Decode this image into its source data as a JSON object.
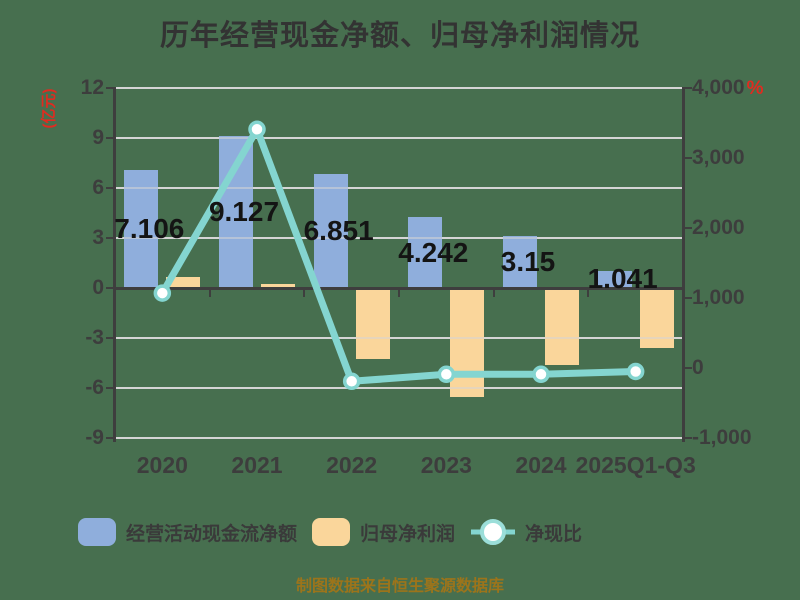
{
  "chart_data": {
    "type": "bar",
    "subtype": "bar-line-combo",
    "title": "历年经营现金净额、归母净利润情况",
    "categories": [
      "2020",
      "2021",
      "2022",
      "2023",
      "2024",
      "2025Q1-Q3"
    ],
    "series": [
      {
        "name": "经营活动现金流净额",
        "type": "bar",
        "axis": "left",
        "color": "#8FAEDC",
        "values": [
          7.106,
          9.127,
          6.851,
          4.242,
          3.15,
          1.041
        ],
        "labels": [
          "7.106",
          "9.127",
          "6.851",
          "4.242",
          "3.15",
          "1.041"
        ]
      },
      {
        "name": "归母净利润",
        "type": "bar",
        "axis": "left",
        "color": "#FAD69B",
        "values": [
          0.66,
          0.27,
          -4.25,
          -6.55,
          -4.6,
          -3.6
        ]
      },
      {
        "name": "净现比",
        "type": "line",
        "axis": "right",
        "color": "#84D5D0",
        "marker_fill": "#FFFFFF",
        "values": [
          1070,
          3410,
          -190,
          -90,
          -90,
          -50
        ]
      }
    ],
    "left_axis": {
      "unit": "(亿元)",
      "min": -9,
      "max": 12,
      "ticks": [
        12,
        9,
        6,
        3,
        0,
        -3,
        -6,
        -9
      ]
    },
    "right_axis": {
      "unit": "%",
      "min": -1000,
      "max": 4000,
      "ticks": [
        "4,000",
        "3,000",
        "2,000",
        "1,000",
        "0",
        "-1,000"
      ]
    },
    "grid": true,
    "legend_position": "bottom",
    "footer": "制图数据来自恒生聚源数据库"
  },
  "colors": {
    "background": "#476F4F",
    "bar_blue": "#8FAEDC",
    "bar_orange": "#FAD69B",
    "line_teal": "#84D5D0",
    "legend_ring_teal": "#9BDED9",
    "grid_gray": "#D5D5D5",
    "axis_dark": "#3E3E3E",
    "axis_unit_red": "#E02B20",
    "title_gray": "#333333",
    "value_label_black": "#141414",
    "footer_gold": "#9C741B"
  }
}
